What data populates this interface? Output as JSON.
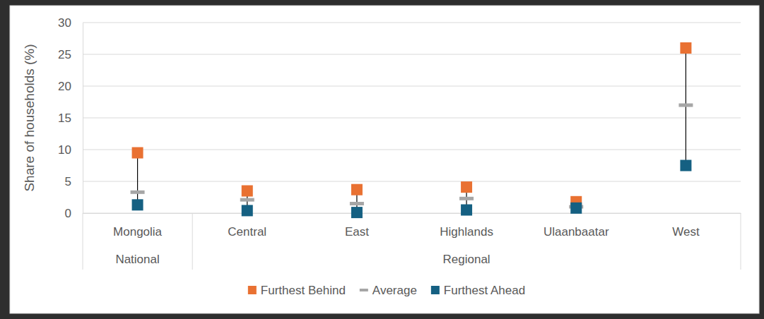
{
  "chart_data": {
    "type": "dumbbell",
    "y_label": "Share of households (%)",
    "categories": [
      "Mongolia",
      "Central",
      "East",
      "Highlands",
      "Ulaanbaatar",
      "West"
    ],
    "groups": [
      {
        "label": "National",
        "categories": [
          "Mongolia"
        ]
      },
      {
        "label": "Regional",
        "categories": [
          "Central",
          "East",
          "Highlands",
          "Ulaanbaatar",
          "West"
        ]
      }
    ],
    "series": [
      {
        "name": "Furthest Behind",
        "color": "#e97132",
        "marker": "square",
        "values": [
          9.5,
          3.5,
          3.7,
          4.1,
          1.8,
          26
        ]
      },
      {
        "name": "Average",
        "color": "#a6a6a6",
        "marker": "dash",
        "values": [
          3.3,
          2.1,
          1.5,
          2.3,
          1.0,
          17
        ]
      },
      {
        "name": "Furthest Ahead",
        "color": "#156082",
        "marker": "square",
        "values": [
          1.3,
          0.4,
          0.1,
          0.5,
          0.8,
          7.5
        ]
      }
    ],
    "ylim": [
      0,
      30
    ],
    "yticks": [
      0,
      5,
      10,
      15,
      20,
      25,
      30
    ],
    "grid": true,
    "legend": "bottom"
  }
}
